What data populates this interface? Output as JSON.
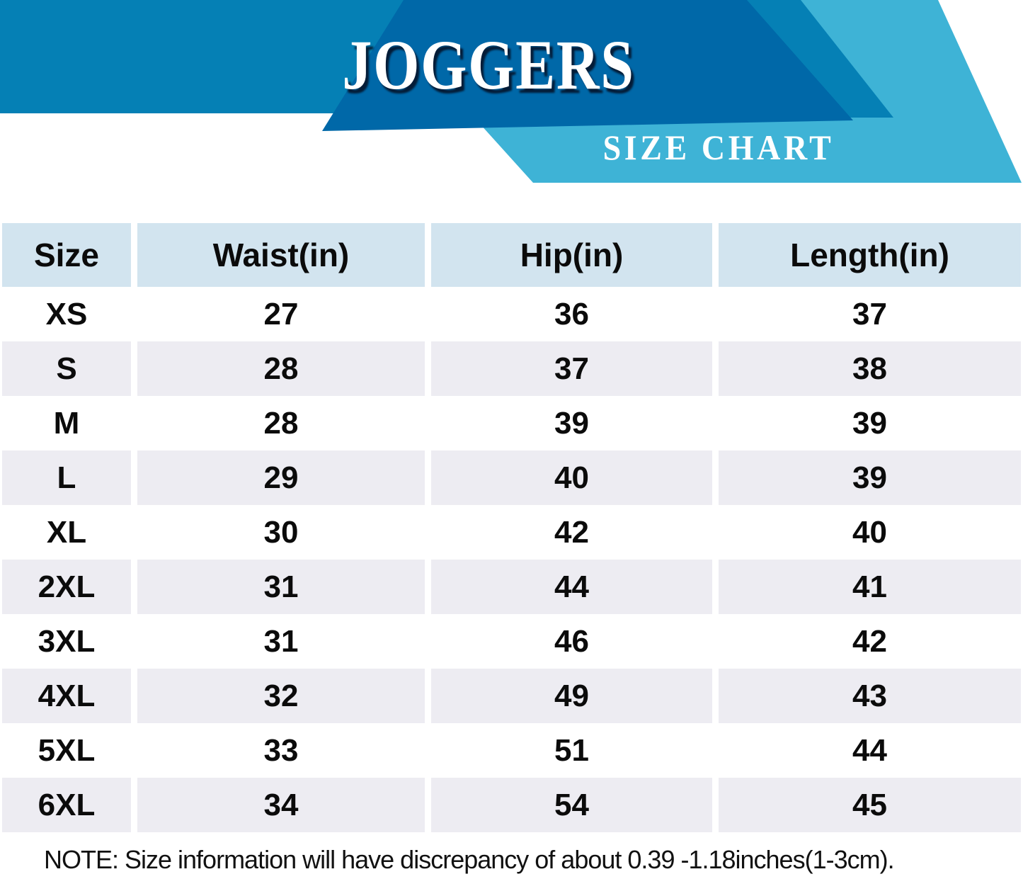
{
  "banner": {
    "title": "JOGGERS",
    "subtitle": "SIZE CHART"
  },
  "table": {
    "columns": [
      "Size",
      "Waist(in)",
      "Hip(in)",
      "Length(in)"
    ],
    "rows": [
      {
        "size": "XS",
        "waist": "27",
        "hip": "36",
        "length": "37"
      },
      {
        "size": "S",
        "waist": "28",
        "hip": "37",
        "length": "38"
      },
      {
        "size": "M",
        "waist": "28",
        "hip": "39",
        "length": "39"
      },
      {
        "size": "L",
        "waist": "29",
        "hip": "40",
        "length": "39"
      },
      {
        "size": "XL",
        "waist": "30",
        "hip": "42",
        "length": "40"
      },
      {
        "size": "2XL",
        "waist": "31",
        "hip": "44",
        "length": "41"
      },
      {
        "size": "3XL",
        "waist": "31",
        "hip": "46",
        "length": "42"
      },
      {
        "size": "4XL",
        "waist": "32",
        "hip": "49",
        "length": "43"
      },
      {
        "size": "5XL",
        "waist": "33",
        "hip": "51",
        "length": "44"
      },
      {
        "size": "6XL",
        "waist": "34",
        "hip": "54",
        "length": "45"
      }
    ]
  },
  "note": "NOTE: Size information will have discrepancy of about 0.39 -1.18inches(1-3cm).",
  "colors": {
    "banner_medium_blue": "#0580b5",
    "banner_dark_blue": "#0068a8",
    "banner_cyan": "#3eb3d6",
    "table_header_bg": "#d2e4ef",
    "row_stripe_bg": "#edecf2",
    "text_color": "#0b0b0b",
    "banner_text_color": "#ffffff"
  },
  "chart_data": {
    "type": "table",
    "title": "JOGGERS",
    "subtitle": "SIZE CHART",
    "columns": [
      "Size",
      "Waist(in)",
      "Hip(in)",
      "Length(in)"
    ],
    "rows": [
      [
        "XS",
        27,
        36,
        37
      ],
      [
        "S",
        28,
        37,
        38
      ],
      [
        "M",
        28,
        39,
        39
      ],
      [
        "L",
        29,
        40,
        39
      ],
      [
        "XL",
        30,
        42,
        40
      ],
      [
        "2XL",
        31,
        44,
        41
      ],
      [
        "3XL",
        31,
        46,
        42
      ],
      [
        "4XL",
        32,
        49,
        43
      ],
      [
        "5XL",
        33,
        51,
        44
      ],
      [
        "6XL",
        34,
        54,
        45
      ]
    ],
    "note": "NOTE: Size information will have discrepancy of about 0.39 -1.18inches(1-3cm)."
  }
}
